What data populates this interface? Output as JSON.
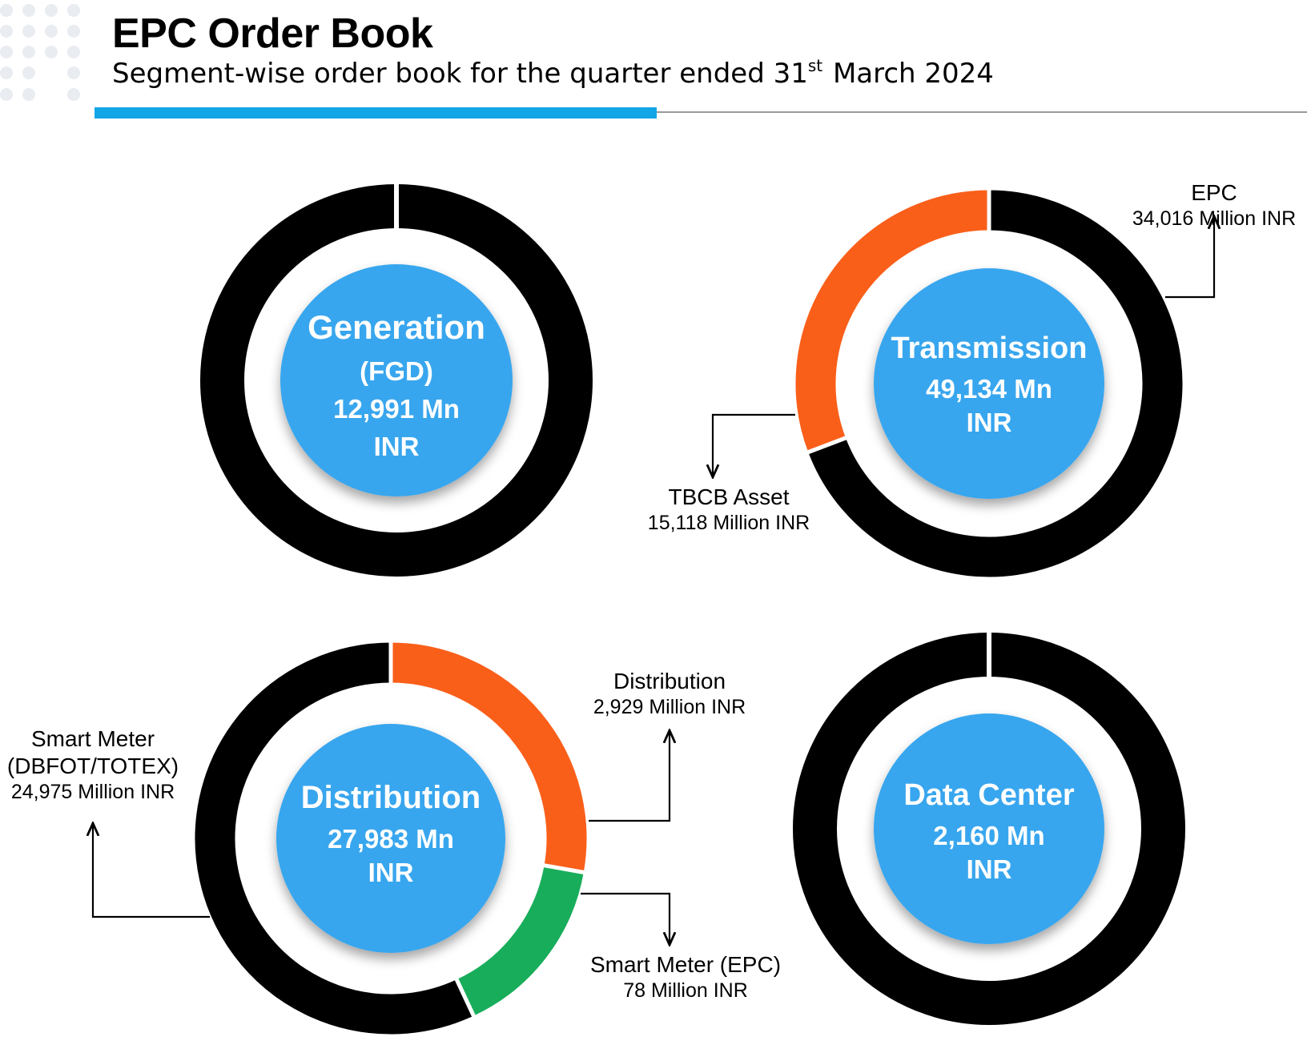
{
  "header": {
    "title": "EPC Order Book",
    "subtitle_pre": "Segment-wise order book for the quarter ended 31",
    "subtitle_sup": "st",
    "subtitle_post": " March 2024",
    "accent_color": "#13a6e6"
  },
  "chart_data": [
    {
      "type": "pie",
      "center_title": "Generation",
      "center_lines": [
        "(FGD)",
        "12,991 Mn",
        "INR"
      ],
      "slices": [
        {
          "label": "",
          "value": 12991,
          "color": "#000000"
        }
      ]
    },
    {
      "type": "pie",
      "center_title": "Transmission",
      "center_lines": [
        "49,134 Mn",
        "INR"
      ],
      "slices": [
        {
          "label": "EPC",
          "value": 34016,
          "value_text": "34,016 Million INR",
          "color": "#000000"
        },
        {
          "label": "TBCB Asset",
          "value": 15118,
          "value_text": "15,118 Million INR",
          "color": "#fa5f1a"
        }
      ]
    },
    {
      "type": "pie",
      "center_title": "Distribution",
      "center_lines": [
        "27,983 Mn",
        "INR"
      ],
      "slices": [
        {
          "label": "Distribution",
          "value": 2929,
          "value_text": "2,929 Million INR",
          "color": "#fa5f1a"
        },
        {
          "label": "Smart Meter (EPC)",
          "value": 78,
          "value_text": "78 Million INR",
          "color": "#18ad5a"
        },
        {
          "label": "Smart Meter (DBFOT/TOTEX)",
          "value": 24975,
          "value_text": "24,975 Million INR",
          "color": "#000000"
        }
      ]
    },
    {
      "type": "pie",
      "center_title": "Data Center",
      "center_lines": [
        "2,160 Mn",
        "INR"
      ],
      "slices": [
        {
          "label": "",
          "value": 2160,
          "color": "#000000"
        }
      ]
    }
  ],
  "callouts": {
    "trans_epc": {
      "name": "EPC",
      "value": "34,016 Million INR"
    },
    "trans_tbcb": {
      "name": "TBCB Asset",
      "value": "15,118 Million INR"
    },
    "dist_distribution": {
      "name": "Distribution",
      "value": "2,929 Million INR"
    },
    "dist_smart_epc": {
      "name": "Smart Meter (EPC)",
      "value": "78 Million INR"
    },
    "dist_smart_dbfot": {
      "name_line1": "Smart Meter",
      "name_line2": "(DBFOT/TOTEX)",
      "value": "24,975 Million INR"
    }
  },
  "colors": {
    "center_fill": "#39a6ee",
    "ring_black": "#000000",
    "orange": "#fa5f1a",
    "green": "#18ad5a",
    "decor_dots": "#e9ecf1"
  }
}
